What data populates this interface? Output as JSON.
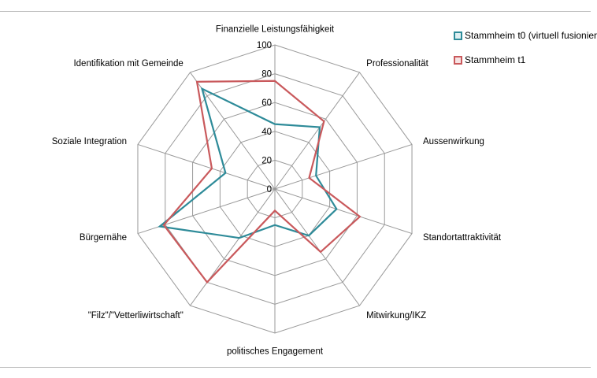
{
  "chart_data": {
    "type": "radar",
    "title": "",
    "categories": [
      "Finanzielle Leistungsfähigkeit",
      "Professionalität",
      "Aussenwirkung",
      "Standortattraktivität",
      "Mitwirkung/IKZ",
      "politisches Engagement",
      "\"Filz\"/\"Vetterliwirtschaft\"",
      "Bürgernähe",
      "Soziale Integration",
      "Identifikation mit Gemeinde"
    ],
    "rlim": [
      0,
      100
    ],
    "ticks": [
      "0",
      "20",
      "40",
      "60",
      "80",
      "100"
    ],
    "tick_values": [
      0,
      20,
      40,
      60,
      80,
      100
    ],
    "grid": true,
    "legend_position": "top-right",
    "series": [
      {
        "name": "Stammheim t0 (virtuell fusionier",
        "color": "#2e8b99",
        "values": [
          45,
          53,
          30,
          45,
          40,
          25,
          42,
          84,
          36,
          86
        ]
      },
      {
        "name": "Stammheim t1",
        "color": "#c9595c",
        "values": [
          75,
          58,
          25,
          62,
          54,
          15,
          80,
          81,
          46,
          92
        ]
      }
    ]
  }
}
